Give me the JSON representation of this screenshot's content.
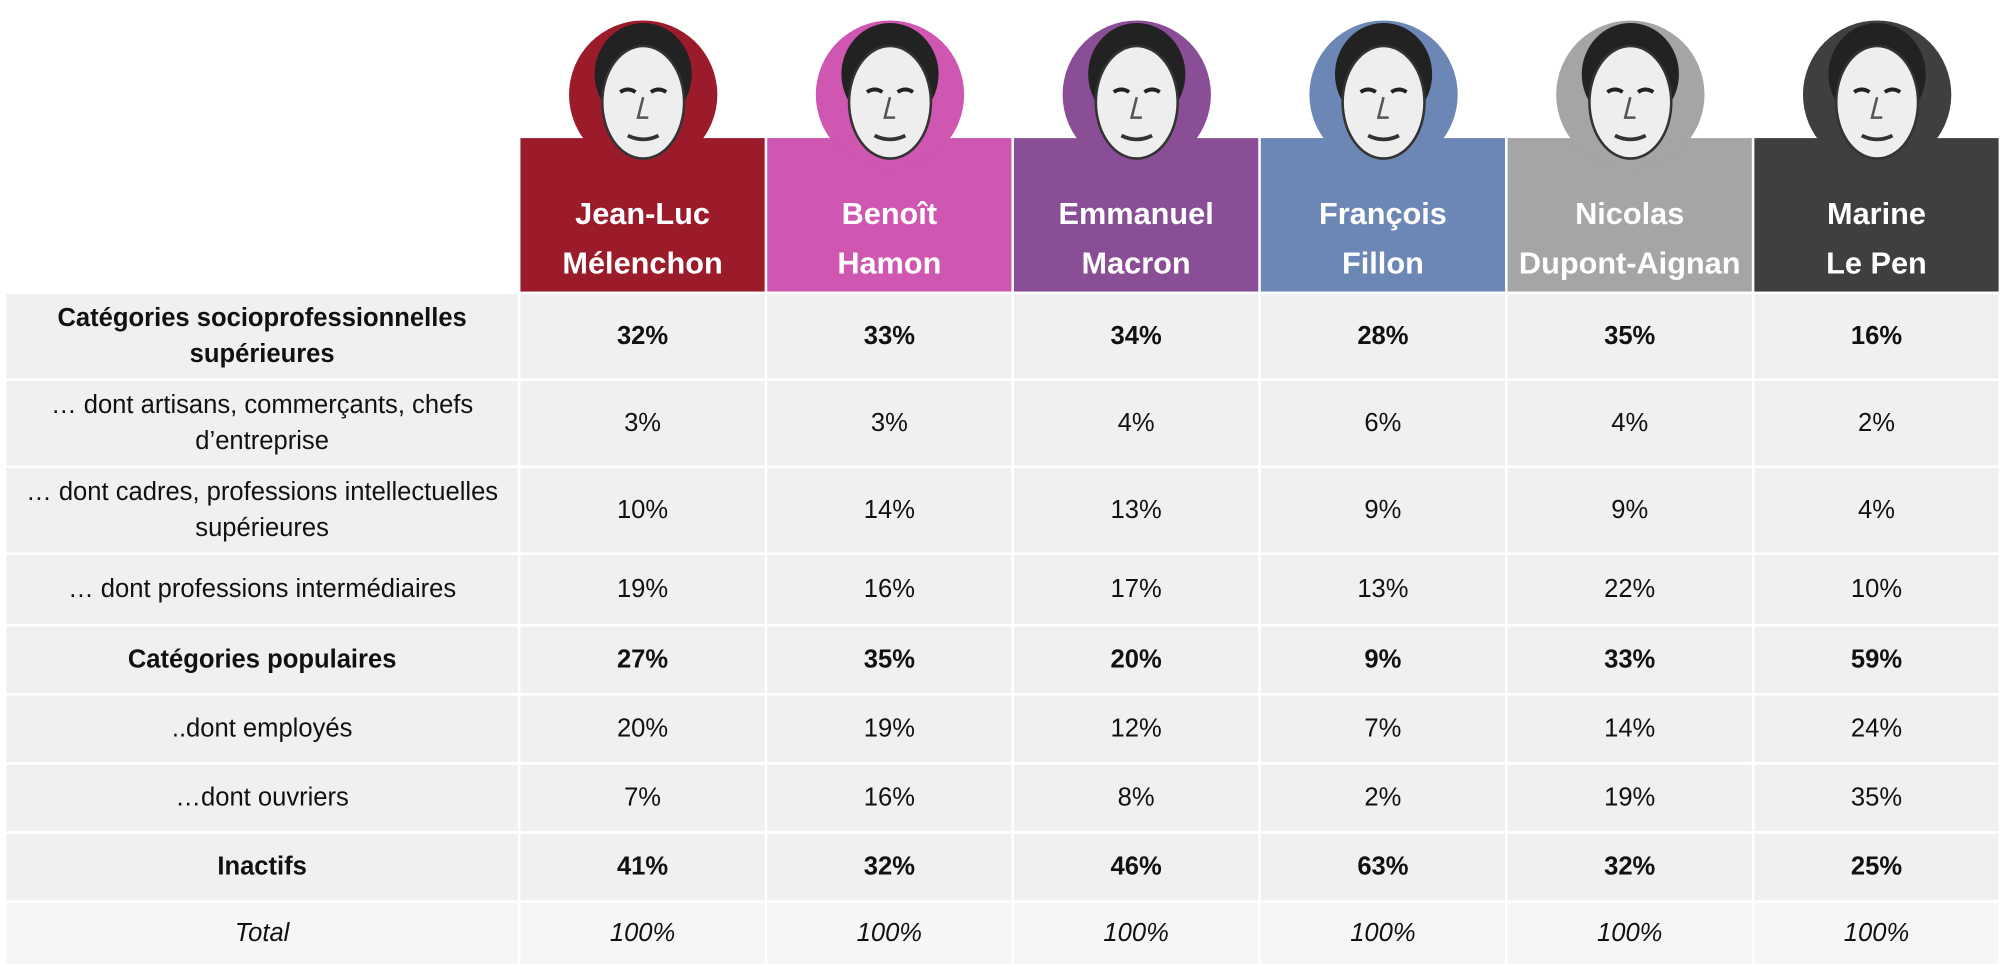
{
  "table": {
    "candidates": [
      {
        "name": [
          "Jean-Luc",
          "Mélenchon"
        ],
        "color": "#9b1b2b"
      },
      {
        "name": [
          "Benoît",
          "Hamon"
        ],
        "color": "#cf56b1"
      },
      {
        "name": [
          "Emmanuel",
          "Macron"
        ],
        "color": "#8a4e96"
      },
      {
        "name": [
          "François",
          "Fillon"
        ],
        "color": "#6c87b6"
      },
      {
        "name": [
          "Nicolas",
          "Dupont-Aignan"
        ],
        "color": "#a5a5a5"
      },
      {
        "name": [
          "Marine",
          "Le Pen"
        ],
        "color": "#3f3f3f"
      }
    ],
    "rows": [
      {
        "label": "Catégories socioprofessionnelles supérieures",
        "style": "bold",
        "values": [
          "32%",
          "33%",
          "34%",
          "28%",
          "35%",
          "16%"
        ]
      },
      {
        "label": "… dont artisans, commerçants, chefs d’entreprise",
        "style": "normal",
        "values": [
          "3%",
          "3%",
          "4%",
          "6%",
          "4%",
          "2%"
        ]
      },
      {
        "label": "… dont cadres, professions intellectuelles supérieures",
        "style": "normal",
        "values": [
          "10%",
          "14%",
          "13%",
          "9%",
          "9%",
          "4%"
        ]
      },
      {
        "label": "… dont professions  intermédiaires",
        "style": "normal",
        "values": [
          "19%",
          "16%",
          "17%",
          "13%",
          "22%",
          "10%"
        ]
      },
      {
        "label": "Catégories populaires",
        "style": "bold",
        "values": [
          "27%",
          "35%",
          "20%",
          "9%",
          "33%",
          "59%"
        ]
      },
      {
        "label": "..dont employés",
        "style": "normal",
        "values": [
          "20%",
          "19%",
          "12%",
          "7%",
          "14%",
          "24%"
        ]
      },
      {
        "label": "…dont ouvriers",
        "style": "normal",
        "values": [
          "7%",
          "16%",
          "8%",
          "2%",
          "19%",
          "35%"
        ]
      },
      {
        "label": "Inactifs",
        "style": "bold",
        "values": [
          "41%",
          "32%",
          "46%",
          "63%",
          "32%",
          "25%"
        ]
      },
      {
        "label": "Total",
        "style": "italic",
        "values": [
          "100%",
          "100%",
          "100%",
          "100%",
          "100%",
          "100%"
        ]
      }
    ]
  }
}
